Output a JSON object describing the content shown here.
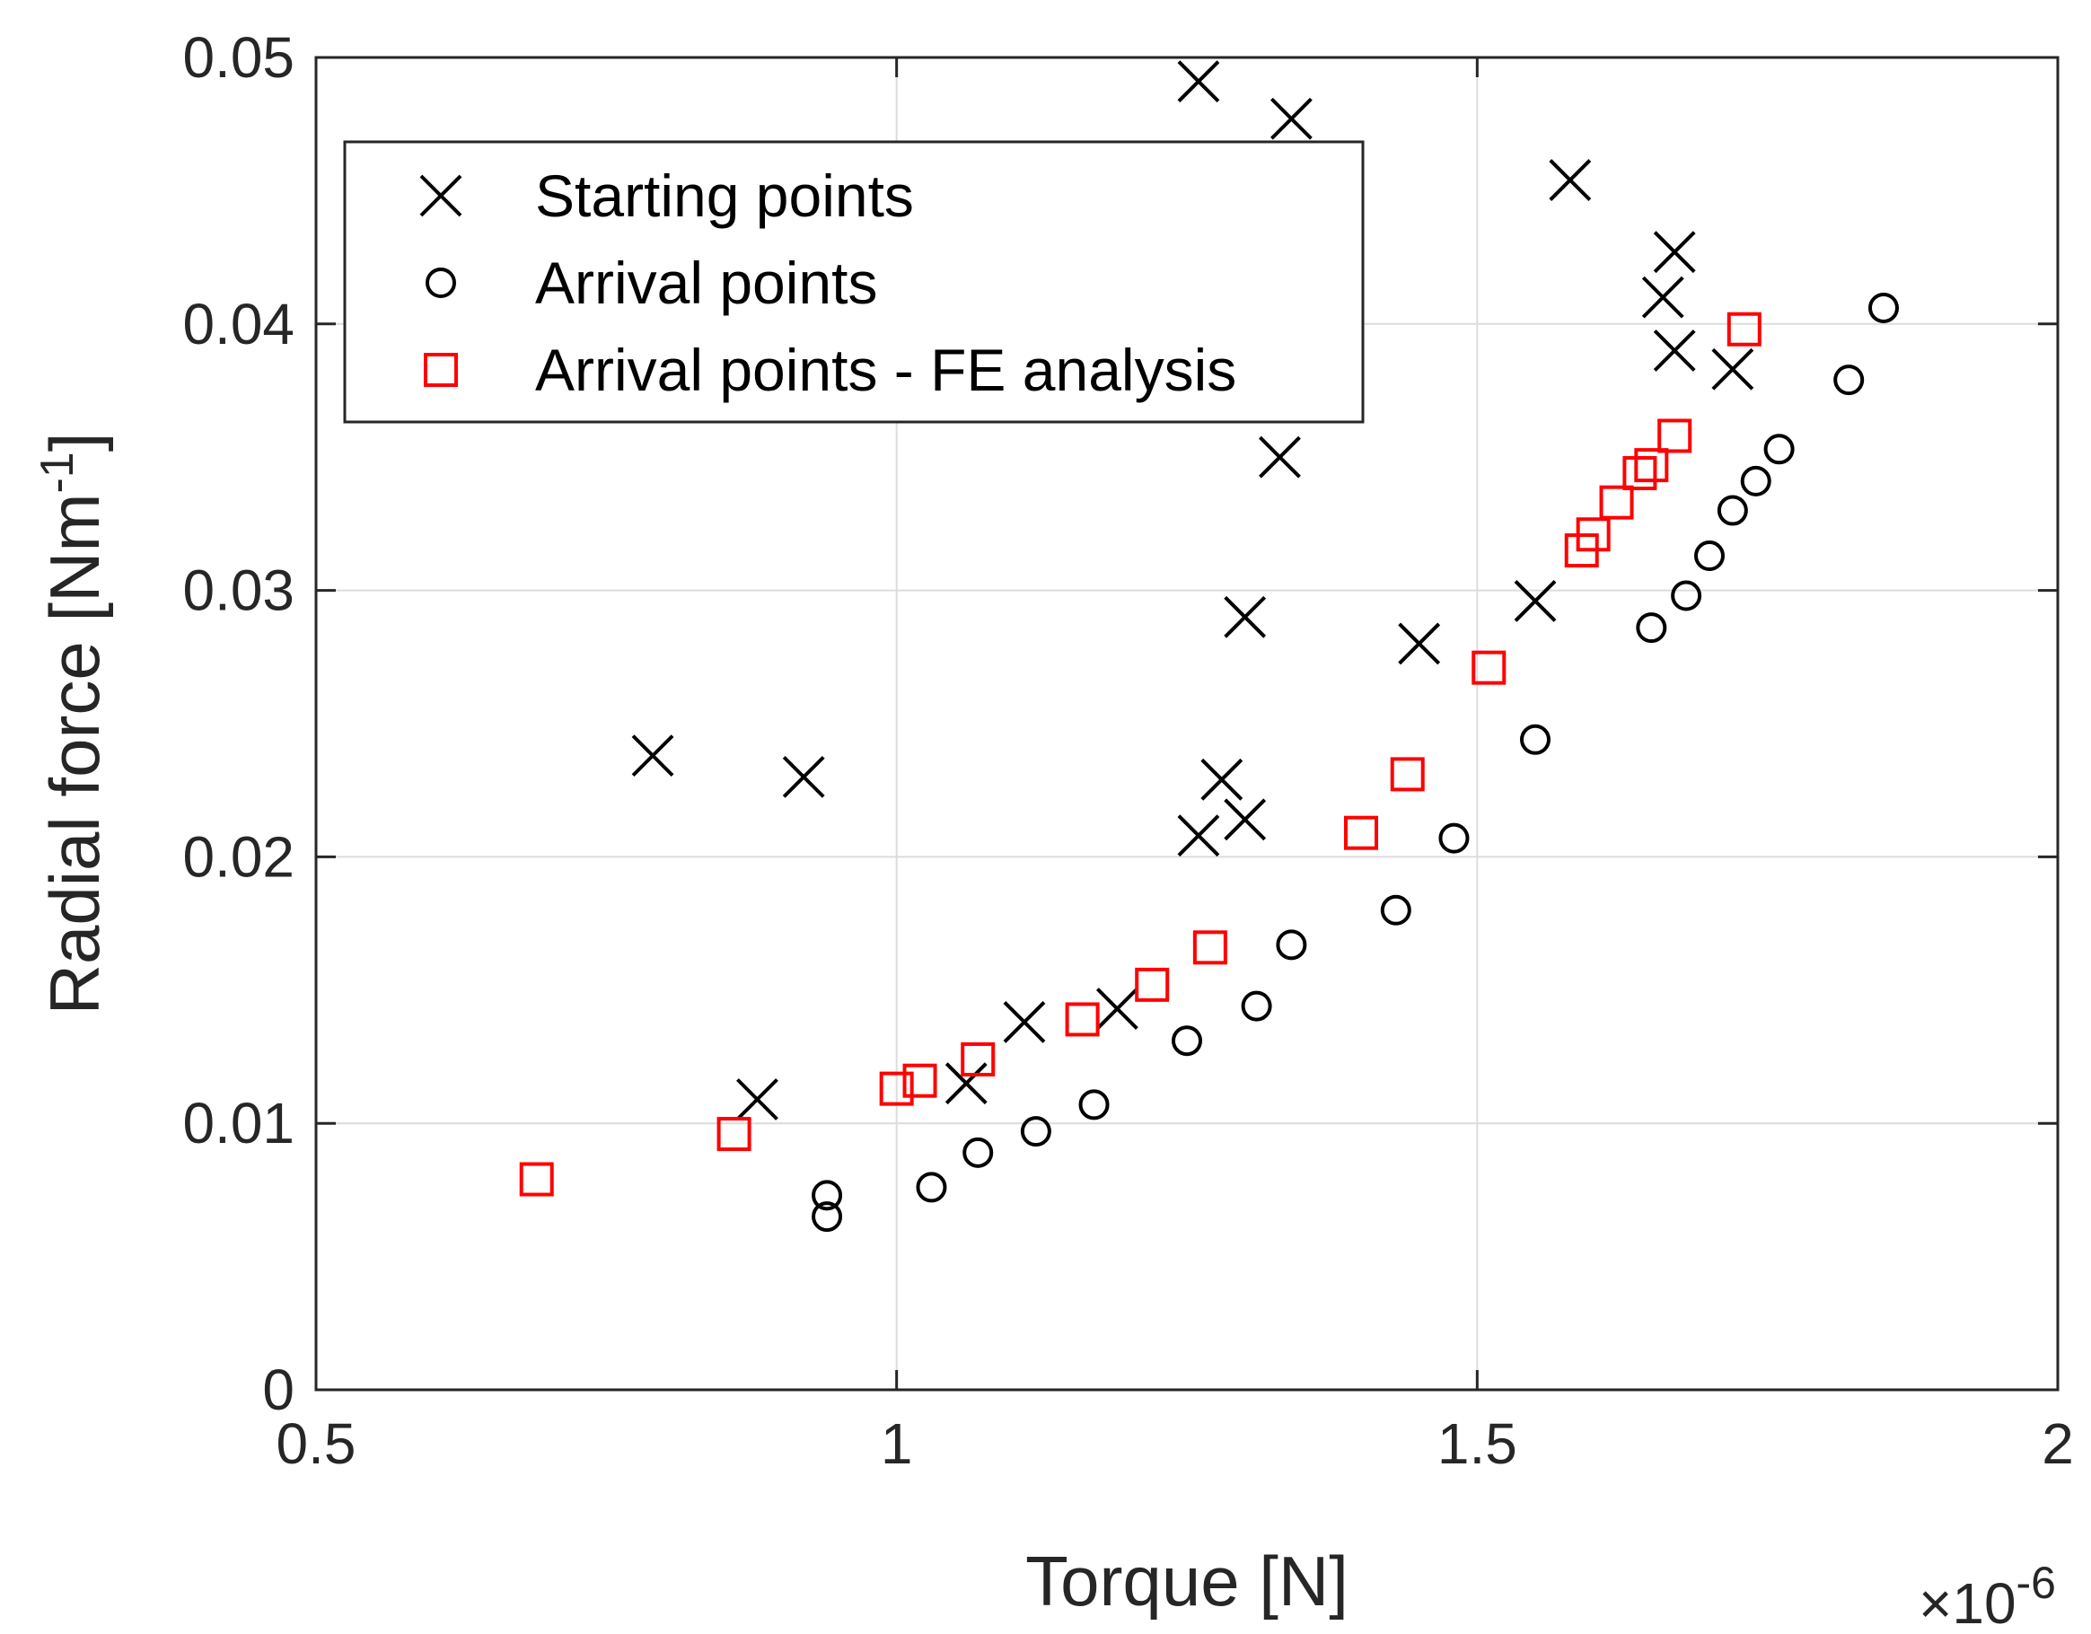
{
  "chart_data": {
    "type": "scatter",
    "title": "",
    "xlabel": "Torque [N]",
    "ylabel_base": "Radial force [Nm",
    "ylabel_sup": "-1",
    "ylabel_end": "]",
    "x_exponent_base": "×10",
    "x_exponent_power": "-6",
    "xlim": [
      0.5,
      2
    ],
    "ylim": [
      0,
      0.05
    ],
    "xticks": [
      0.5,
      1,
      1.5,
      2
    ],
    "xtick_labels": [
      "0.5",
      "1",
      "1.5",
      "2"
    ],
    "yticks": [
      0,
      0.01,
      0.02,
      0.03,
      0.04,
      0.05
    ],
    "ytick_labels": [
      "0",
      "0.01",
      "0.02",
      "0.03",
      "0.04",
      "0.05"
    ],
    "grid": true,
    "legend_position": "top-left",
    "series": [
      {
        "name": "Starting points",
        "marker": "x",
        "color": "#000000",
        "points": [
          [
            0.79,
            0.0238
          ],
          [
            0.92,
            0.023
          ],
          [
            0.88,
            0.0109
          ],
          [
            1.06,
            0.0115
          ],
          [
            1.11,
            0.0138
          ],
          [
            1.19,
            0.0143
          ],
          [
            1.26,
            0.0208
          ],
          [
            1.28,
            0.0229
          ],
          [
            1.3,
            0.0214
          ],
          [
            1.3,
            0.029
          ],
          [
            1.33,
            0.035
          ],
          [
            1.26,
            0.0491
          ],
          [
            1.34,
            0.0477
          ],
          [
            1.45,
            0.028
          ],
          [
            1.55,
            0.0296
          ],
          [
            1.58,
            0.0454
          ],
          [
            1.66,
            0.041
          ],
          [
            1.67,
            0.0427
          ],
          [
            1.67,
            0.039
          ],
          [
            1.72,
            0.0383
          ]
        ]
      },
      {
        "name": "Arrival points",
        "marker": "o",
        "color": "#000000",
        "points": [
          [
            0.94,
            0.0065
          ],
          [
            0.94,
            0.0073
          ],
          [
            1.03,
            0.0076
          ],
          [
            1.07,
            0.0089
          ],
          [
            1.12,
            0.0097
          ],
          [
            1.17,
            0.0107
          ],
          [
            1.25,
            0.0131
          ],
          [
            1.31,
            0.0144
          ],
          [
            1.34,
            0.0167
          ],
          [
            1.43,
            0.018
          ],
          [
            1.48,
            0.0207
          ],
          [
            1.55,
            0.0244
          ],
          [
            1.65,
            0.0286
          ],
          [
            1.68,
            0.0298
          ],
          [
            1.7,
            0.0313
          ],
          [
            1.72,
            0.033
          ],
          [
            1.74,
            0.0341
          ],
          [
            1.76,
            0.0353
          ],
          [
            1.82,
            0.0379
          ],
          [
            1.85,
            0.0406
          ]
        ]
      },
      {
        "name": "Arrival points - FE analysis",
        "marker": "square",
        "color": "#ff0000",
        "points": [
          [
            0.69,
            0.0079
          ],
          [
            0.86,
            0.0096
          ],
          [
            1.0,
            0.0113
          ],
          [
            1.02,
            0.0116
          ],
          [
            1.07,
            0.0124
          ],
          [
            1.16,
            0.0139
          ],
          [
            1.22,
            0.0152
          ],
          [
            1.27,
            0.0166
          ],
          [
            1.4,
            0.0209
          ],
          [
            1.44,
            0.0231
          ],
          [
            1.51,
            0.0271
          ],
          [
            1.59,
            0.0315
          ],
          [
            1.6,
            0.0321
          ],
          [
            1.62,
            0.0333
          ],
          [
            1.64,
            0.0344
          ],
          [
            1.65,
            0.0347
          ],
          [
            1.67,
            0.0358
          ],
          [
            1.73,
            0.0398
          ]
        ]
      }
    ]
  }
}
